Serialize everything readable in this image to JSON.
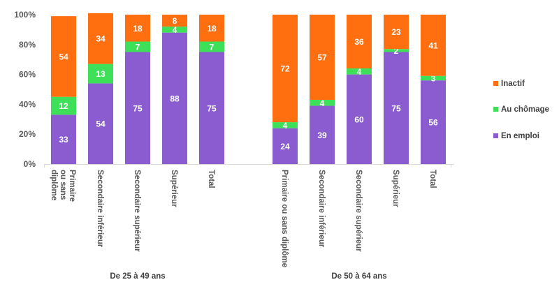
{
  "chart_data": {
    "type": "bar",
    "stacked": true,
    "ylim": [
      0,
      100
    ],
    "y_ticks": [
      0,
      20,
      40,
      60,
      80,
      100
    ],
    "y_tick_labels": [
      "0%",
      "20%",
      "40%",
      "60%",
      "80%",
      "100%"
    ],
    "grid": false,
    "legend_position": "right",
    "groups": [
      {
        "label": "De 25 à 49 ans",
        "categories": [
          [
            "Primaire",
            "ou sans",
            "diplôme"
          ],
          [
            "Secondaire inférieur"
          ],
          [
            "Secondaire supérieur"
          ],
          [
            "Supérieur"
          ],
          [
            "Total"
          ]
        ],
        "series": [
          {
            "name": "En emploi",
            "values": [
              33,
              54,
              75,
              88,
              75
            ]
          },
          {
            "name": "Au chômage",
            "values": [
              12,
              13,
              7,
              4,
              7
            ]
          },
          {
            "name": "Inactif",
            "values": [
              54,
              34,
              18,
              8,
              18
            ]
          }
        ]
      },
      {
        "label": "De 50 à 64 ans",
        "categories": [
          [
            "Primaire ou sans diplôme"
          ],
          [
            "Secondaire inférieur"
          ],
          [
            "Secondaire supérieur"
          ],
          [
            "Supérieur"
          ],
          [
            "Total"
          ]
        ],
        "series": [
          {
            "name": "En emploi",
            "values": [
              24,
              39,
              60,
              75,
              56
            ]
          },
          {
            "name": "Au chômage",
            "values": [
              4,
              4,
              4,
              2,
              3
            ]
          },
          {
            "name": "Inactif",
            "values": [
              72,
              57,
              36,
              23,
              41
            ]
          }
        ]
      }
    ],
    "colors": {
      "En emploi": "#8a5cd0",
      "Au chômage": "#3fe059",
      "Inactif": "#ff6f0f"
    },
    "legend": [
      "Inactif",
      "Au chômage",
      "En emploi"
    ]
  }
}
